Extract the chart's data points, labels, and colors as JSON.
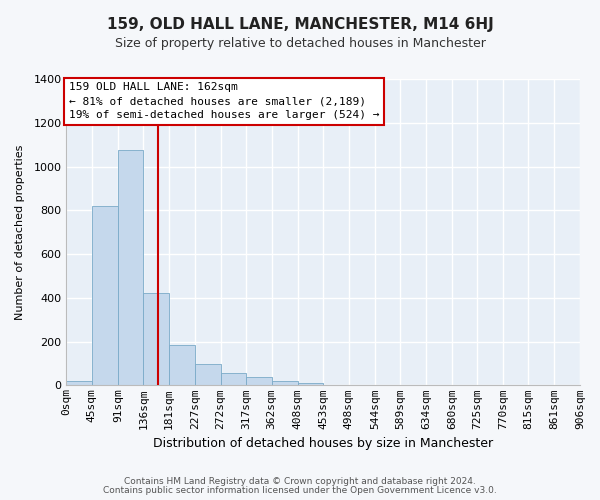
{
  "title": "159, OLD HALL LANE, MANCHESTER, M14 6HJ",
  "subtitle": "Size of property relative to detached houses in Manchester",
  "xlabel": "Distribution of detached houses by size in Manchester",
  "ylabel": "Number of detached properties",
  "bar_color": "#c5d8ec",
  "bar_edge_color": "#7aaac8",
  "plot_bg_color": "#e8eff7",
  "fig_bg_color": "#f5f7fa",
  "grid_color": "#ffffff",
  "property_line_color": "#cc0000",
  "annotation_box_color": "#cc0000",
  "annotation_title": "159 OLD HALL LANE: 162sqm",
  "annotation_line1": "← 81% of detached houses are smaller (2,189)",
  "annotation_line2": "19% of semi-detached houses are larger (524) →",
  "bin_edges": [
    0,
    45,
    91,
    136,
    181,
    227,
    272,
    317,
    362,
    408,
    453,
    498,
    544,
    589,
    634,
    680,
    725,
    770,
    815,
    861,
    906
  ],
  "bin_labels": [
    "0sqm",
    "45sqm",
    "91sqm",
    "136sqm",
    "181sqm",
    "227sqm",
    "272sqm",
    "317sqm",
    "362sqm",
    "408sqm",
    "453sqm",
    "498sqm",
    "544sqm",
    "589sqm",
    "634sqm",
    "680sqm",
    "725sqm",
    "770sqm",
    "815sqm",
    "861sqm",
    "906sqm"
  ],
  "counts": [
    20,
    820,
    1075,
    420,
    185,
    100,
    55,
    38,
    18,
    12,
    0,
    0,
    0,
    0,
    0,
    0,
    0,
    0,
    0,
    0
  ],
  "property_line_x": 162,
  "ylim": [
    0,
    1400
  ],
  "yticks": [
    0,
    200,
    400,
    600,
    800,
    1000,
    1200,
    1400
  ],
  "footer_line1": "Contains HM Land Registry data © Crown copyright and database right 2024.",
  "footer_line2": "Contains public sector information licensed under the Open Government Licence v3.0.",
  "title_fontsize": 11,
  "subtitle_fontsize": 9,
  "xlabel_fontsize": 9,
  "ylabel_fontsize": 8,
  "tick_fontsize": 8,
  "footer_fontsize": 6.5,
  "annotation_fontsize": 8
}
